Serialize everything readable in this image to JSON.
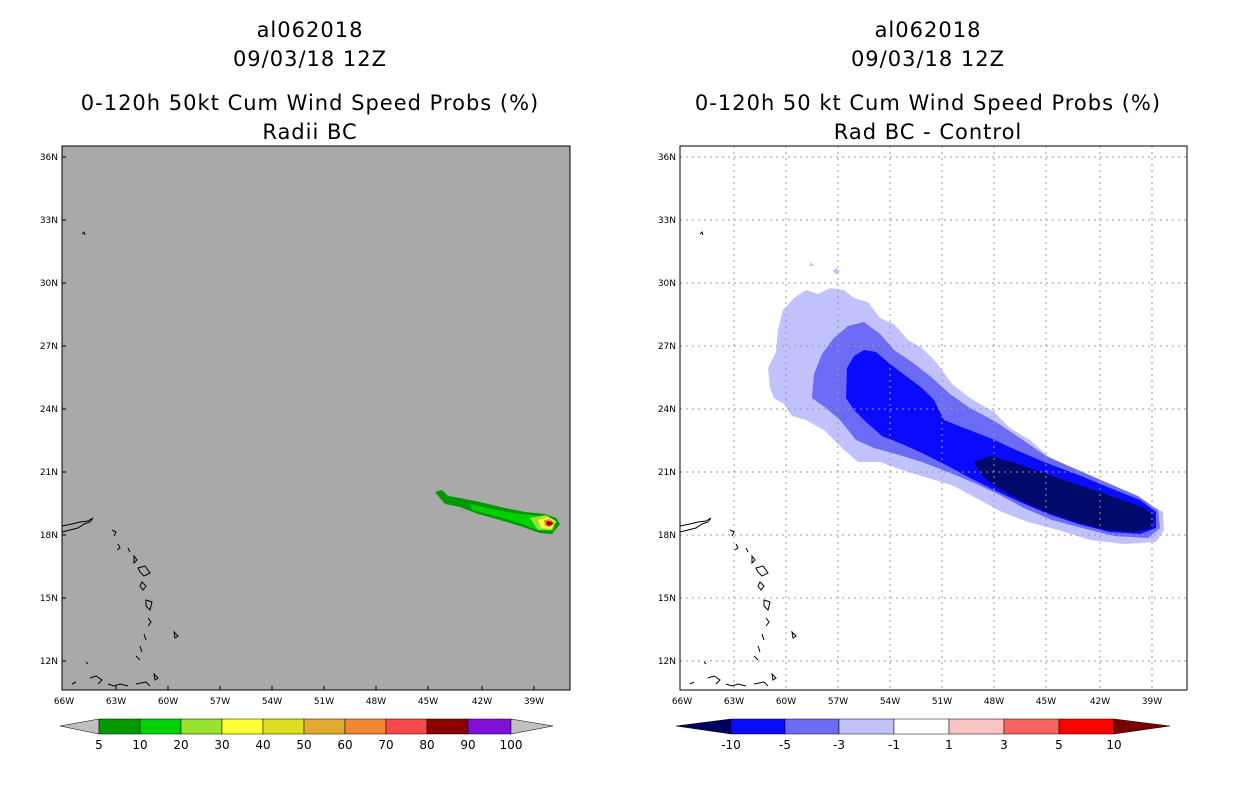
{
  "left_panel": {
    "title_line1": "al062018",
    "title_line2": "09/03/18 12Z",
    "title_line3": "0-120h 50kt Cum Wind Speed Probs (%)",
    "title_line4": "Radii BC",
    "background_color": "#a9a9a9",
    "colorbar": {
      "labels": [
        "5",
        "10",
        "20",
        "30",
        "40",
        "50",
        "60",
        "70",
        "80",
        "90",
        "100"
      ],
      "colors": [
        "#009900",
        "#00d200",
        "#99e132",
        "#ffff34",
        "#dddd22",
        "#e1aa33",
        "#f28833",
        "#f64a4a",
        "#8b0000",
        "#8010d8"
      ],
      "end_color": "#c0c0c0"
    }
  },
  "right_panel": {
    "title_line1": "al062018",
    "title_line2": "09/03/18 12Z",
    "title_line3": "0-120h 50 kt Cum Wind Speed Probs (%)",
    "title_line4": "Rad BC - Control",
    "background_color": "#ffffff",
    "colorbar": {
      "labels": [
        "-10",
        "-5",
        "-3",
        "-1",
        "1",
        "3",
        "5",
        "10"
      ],
      "colors": [
        "#000a6a",
        "#0a0aff",
        "#6b6bf6",
        "#c1c1fb",
        "#ffffff",
        "#fbc4c4",
        "#f86464",
        "#ff0000",
        "#7a0000"
      ],
      "start_color": "#000060"
    }
  },
  "axes": {
    "lat_labels": [
      "36N",
      "33N",
      "30N",
      "27N",
      "24N",
      "21N",
      "18N",
      "15N",
      "12N"
    ],
    "lon_labels": [
      "66W",
      "63W",
      "60W",
      "57W",
      "54W",
      "51W",
      "48W",
      "45W",
      "42W",
      "39W"
    ]
  },
  "shading_colors": {
    "minus1": "#c1c1fb",
    "minus3": "#6b6bf6",
    "minus5": "#0a0aff",
    "minus10": "#000a6a",
    "prob5": "#009900",
    "prob10": "#00d200",
    "prob20": "#99e132",
    "prob30": "#ffff34",
    "prob60": "#f28833",
    "prob80": "#8b0000"
  }
}
